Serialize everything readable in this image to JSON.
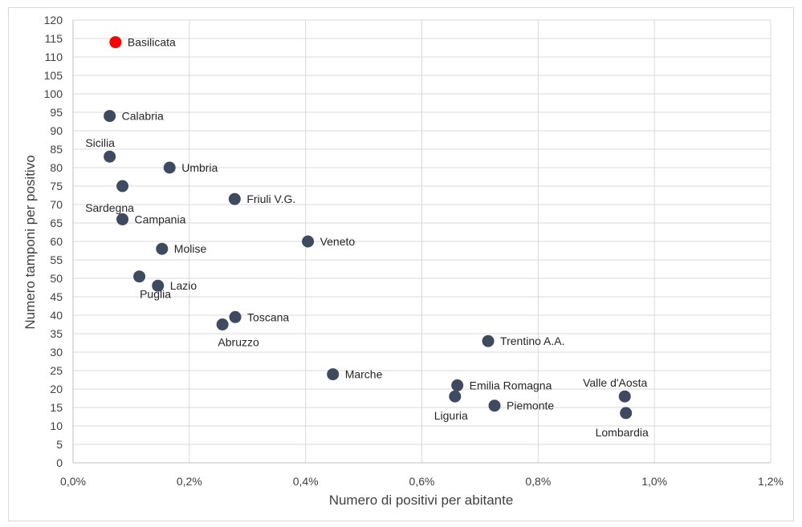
{
  "chart_data": {
    "type": "scatter",
    "title": "",
    "xlabel": "Numero di positivi per abitante",
    "ylabel": "Numero tamponi per positivo",
    "xlim": [
      0,
      1.2
    ],
    "ylim": [
      0,
      120
    ],
    "x_ticks": [
      "0,0%",
      "0,2%",
      "0,4%",
      "0,6%",
      "0,8%",
      "1,0%",
      "1,2%"
    ],
    "x_tick_values": [
      0,
      0.2,
      0.4,
      0.6,
      0.8,
      1.0,
      1.2
    ],
    "y_ticks": [
      "0",
      "5",
      "10",
      "15",
      "20",
      "25",
      "30",
      "35",
      "40",
      "45",
      "50",
      "55",
      "60",
      "65",
      "70",
      "75",
      "80",
      "85",
      "90",
      "95",
      "100",
      "105",
      "110",
      "115",
      "120"
    ],
    "y_tick_values": [
      0,
      5,
      10,
      15,
      20,
      25,
      30,
      35,
      40,
      45,
      50,
      55,
      60,
      65,
      70,
      75,
      80,
      85,
      90,
      95,
      100,
      105,
      110,
      115,
      120
    ],
    "grid": true,
    "default_color": "#3e4a5f",
    "highlight_color": "#ff0000",
    "label_color": "#262626",
    "points": [
      {
        "name": "Basilicata",
        "x": 0.073,
        "y": 114,
        "highlight": true,
        "label_pos": "right"
      },
      {
        "name": "Calabria",
        "x": 0.063,
        "y": 94,
        "label_pos": "right"
      },
      {
        "name": "Sicilia",
        "x": 0.063,
        "y": 83,
        "label_pos": "above"
      },
      {
        "name": "Umbria",
        "x": 0.166,
        "y": 80,
        "label_pos": "right"
      },
      {
        "name": "Sardegna",
        "x": 0.085,
        "y": 75,
        "label_pos": "below-left"
      },
      {
        "name": "Friuli V.G.",
        "x": 0.278,
        "y": 71.5,
        "label_pos": "right"
      },
      {
        "name": "Campania",
        "x": 0.085,
        "y": 66,
        "label_pos": "right"
      },
      {
        "name": "Veneto",
        "x": 0.404,
        "y": 60,
        "label_pos": "right"
      },
      {
        "name": "Molise",
        "x": 0.153,
        "y": 58,
        "label_pos": "right"
      },
      {
        "name": "Puglia",
        "x": 0.114,
        "y": 50.5,
        "label_pos": "below-right"
      },
      {
        "name": "Lazio",
        "x": 0.146,
        "y": 48,
        "label_pos": "right"
      },
      {
        "name": "Toscana",
        "x": 0.279,
        "y": 39.5,
        "label_pos": "right"
      },
      {
        "name": "Abruzzo",
        "x": 0.257,
        "y": 37.5,
        "label_pos": "below-right"
      },
      {
        "name": "Trentino A.A.",
        "x": 0.714,
        "y": 33,
        "label_pos": "right"
      },
      {
        "name": "Marche",
        "x": 0.447,
        "y": 24,
        "label_pos": "right"
      },
      {
        "name": "Emilia Romagna",
        "x": 0.661,
        "y": 21,
        "label_pos": "right"
      },
      {
        "name": "Liguria",
        "x": 0.657,
        "y": 18,
        "label_pos": "below"
      },
      {
        "name": "Valle d'Aosta",
        "x": 0.949,
        "y": 18,
        "label_pos": "above"
      },
      {
        "name": "Piemonte",
        "x": 0.725,
        "y": 15.5,
        "label_pos": "right"
      },
      {
        "name": "Lombardia",
        "x": 0.951,
        "y": 13.5,
        "label_pos": "below"
      }
    ]
  }
}
